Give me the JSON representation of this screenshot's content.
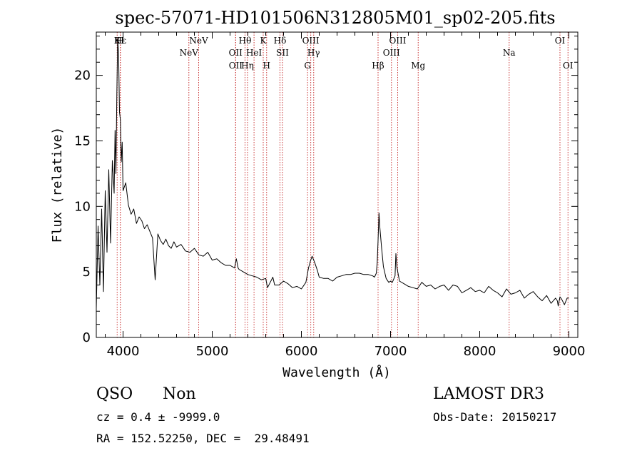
{
  "chart_data": {
    "type": "line",
    "title": "spec-57071-HD101506N312805M01_sp02-205.fits",
    "xlabel": "Wavelength (Å)",
    "ylabel": "Flux (relative)",
    "xlim": [
      3700,
      9100
    ],
    "ylim": [
      0,
      23.3
    ],
    "xticks": [
      4000,
      5000,
      6000,
      7000,
      8000,
      9000
    ],
    "yticks": [
      0,
      5,
      10,
      15,
      20
    ],
    "line_color": "#000000",
    "marker_color": "#c83232",
    "series": [
      {
        "name": "spectrum",
        "x": [
          3700,
          3720,
          3740,
          3760,
          3780,
          3800,
          3820,
          3840,
          3860,
          3880,
          3900,
          3910,
          3920,
          3930,
          3940,
          3950,
          3960,
          3970,
          3980,
          3990,
          4000,
          4030,
          4060,
          4090,
          4120,
          4150,
          4180,
          4210,
          4240,
          4270,
          4300,
          4330,
          4360,
          4390,
          4420,
          4450,
          4480,
          4510,
          4540,
          4570,
          4600,
          4650,
          4700,
          4750,
          4800,
          4850,
          4900,
          4950,
          5000,
          5050,
          5100,
          5150,
          5200,
          5250,
          5270,
          5290,
          5300,
          5350,
          5400,
          5450,
          5500,
          5550,
          5600,
          5620,
          5650,
          5680,
          5700,
          5750,
          5800,
          5850,
          5900,
          5950,
          6000,
          6050,
          6080,
          6100,
          6120,
          6150,
          6180,
          6200,
          6250,
          6300,
          6350,
          6400,
          6450,
          6500,
          6550,
          6600,
          6650,
          6700,
          6750,
          6800,
          6820,
          6840,
          6850,
          6860,
          6870,
          6880,
          6900,
          6920,
          6950,
          6980,
          7000,
          7020,
          7050,
          7060,
          7070,
          7100,
          7150,
          7200,
          7250,
          7300,
          7350,
          7400,
          7450,
          7500,
          7550,
          7600,
          7650,
          7700,
          7750,
          7800,
          7850,
          7900,
          7950,
          8000,
          8050,
          8100,
          8150,
          8200,
          8250,
          8300,
          8350,
          8400,
          8450,
          8500,
          8550,
          8600,
          8650,
          8700,
          8750,
          8800,
          8850,
          8870,
          8880,
          8900,
          8920,
          8950,
          8980,
          9000
        ],
        "y": [
          2.2,
          8.5,
          4.0,
          9.8,
          3.5,
          11.2,
          6.5,
          12.8,
          7.2,
          13.5,
          11.0,
          15.8,
          12.5,
          18.6,
          22.8,
          21.5,
          17.2,
          16.6,
          13.4,
          14.9,
          11.2,
          11.8,
          10.1,
          9.4,
          9.8,
          8.7,
          9.2,
          8.9,
          8.3,
          8.6,
          8.1,
          7.6,
          4.4,
          7.9,
          7.4,
          7.1,
          7.5,
          7.0,
          6.8,
          7.3,
          6.9,
          7.1,
          6.6,
          6.5,
          6.8,
          6.3,
          6.2,
          6.5,
          5.9,
          6.0,
          5.7,
          5.5,
          5.5,
          5.3,
          6.0,
          5.3,
          5.2,
          5.0,
          4.8,
          4.7,
          4.6,
          4.4,
          4.5,
          3.8,
          4.2,
          4.6,
          4.0,
          4.0,
          4.3,
          4.1,
          3.8,
          3.9,
          3.7,
          4.2,
          5.3,
          5.8,
          6.2,
          5.7,
          5.1,
          4.6,
          4.5,
          4.5,
          4.3,
          4.6,
          4.7,
          4.8,
          4.8,
          4.9,
          4.9,
          4.8,
          4.8,
          4.7,
          4.6,
          4.9,
          5.7,
          7.4,
          9.5,
          8.4,
          6.8,
          5.4,
          4.5,
          4.2,
          4.3,
          4.2,
          4.7,
          6.4,
          5.4,
          4.3,
          4.1,
          3.9,
          3.8,
          3.7,
          4.2,
          3.9,
          4.0,
          3.7,
          3.9,
          4.0,
          3.6,
          4.0,
          3.9,
          3.4,
          3.6,
          3.8,
          3.5,
          3.6,
          3.4,
          3.9,
          3.6,
          3.4,
          3.1,
          3.7,
          3.3,
          3.4,
          3.6,
          3.0,
          3.3,
          3.5,
          3.1,
          2.8,
          3.2,
          2.6,
          3.0,
          2.8,
          2.4,
          3.1,
          2.9,
          2.5,
          3.0,
          3.0
        ]
      }
    ],
    "lines": [
      {
        "x": 3934,
        "label": "K",
        "row": 1
      },
      {
        "x": 3969,
        "label": "H",
        "row": 1
      },
      {
        "x": 3970,
        "label": "Hε",
        "row": 1
      },
      {
        "x": 4738,
        "label": "NeV",
        "row": 2
      },
      {
        "x": 4848,
        "label": "NeV",
        "row": 1
      },
      {
        "x": 5262,
        "label": "OII",
        "row": 2
      },
      {
        "x": 5263,
        "label": "OII",
        "row": 3
      },
      {
        "x": 5368,
        "label": "Hθ",
        "row": 1
      },
      {
        "x": 5396,
        "label": "Hη",
        "row": 3
      },
      {
        "x": 5469,
        "label": "HeI",
        "row": 2
      },
      {
        "x": 5572,
        "label": "K",
        "row": 1
      },
      {
        "x": 5610,
        "label": "H",
        "row": 3
      },
      {
        "x": 5760,
        "label": "Hδ",
        "row": 1
      },
      {
        "x": 5788,
        "label": "SII",
        "row": 2
      },
      {
        "x": 6069,
        "label": "G",
        "row": 3
      },
      {
        "x": 6105,
        "label": "OIII",
        "row": 1
      },
      {
        "x": 6138,
        "label": "Hγ",
        "row": 2
      },
      {
        "x": 6860,
        "label": "Hβ",
        "row": 3
      },
      {
        "x": 7010,
        "label": "OIII",
        "row": 2
      },
      {
        "x": 7080,
        "label": "OIII",
        "row": 1
      },
      {
        "x": 7310,
        "label": "Mg",
        "row": 3
      },
      {
        "x": 8330,
        "label": "Na",
        "row": 2
      },
      {
        "x": 8900,
        "label": "OI",
        "row": 1
      },
      {
        "x": 8990,
        "label": "OI",
        "row": 3
      }
    ]
  },
  "info": {
    "object_class": "QSO",
    "subclass": "Non",
    "survey": "LAMOST DR3",
    "cz_line": "cz = 0.4 ± -9999.0",
    "obs_date": "Obs-Date: 20150217",
    "coords": "RA = 152.52250, DEC =  29.48491"
  }
}
